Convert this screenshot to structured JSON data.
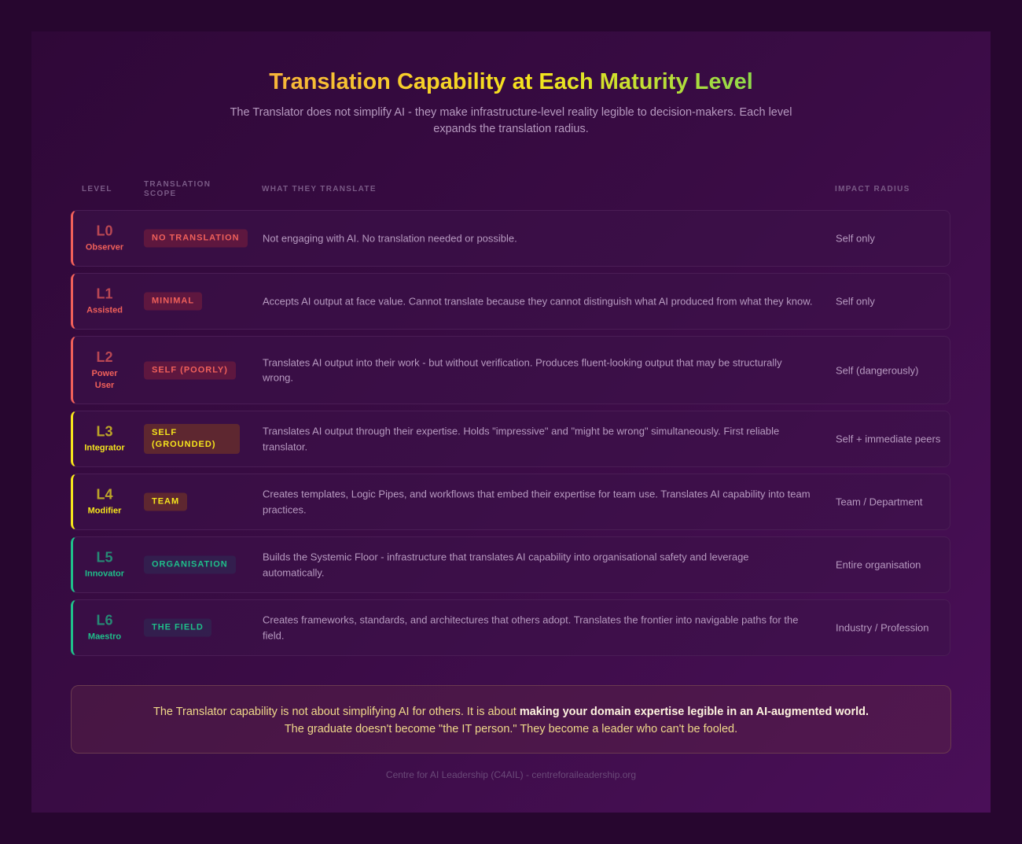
{
  "title": "Translation Capability at Each Maturity Level",
  "subtitle": "The Translator does not simplify AI - they make infrastructure-level reality legible to decision-makers. Each level expands the translation radius.",
  "headers": {
    "level": "LEVEL",
    "scope_line1": "TRANSLATION",
    "scope_line2": "SCOPE",
    "what": "WHAT THEY TRANSLATE",
    "impact": "IMPACT RADIUS"
  },
  "rows": [
    {
      "code": "L0",
      "name": "Observer",
      "scope": "NO TRANSLATION",
      "desc": "Not engaging with AI. No translation needed or possible.",
      "impact": "Self only",
      "color": "#f0605a"
    },
    {
      "code": "L1",
      "name": "Assisted",
      "scope": "MINIMAL",
      "desc": "Accepts AI output at face value. Cannot translate because they cannot distinguish what AI produced from what they know.",
      "impact": "Self only",
      "color": "#f0605a"
    },
    {
      "code": "L2",
      "name": "Power User",
      "scope": "SELF (POORLY)",
      "desc": "Translates AI output into their work - but without verification. Produces fluent-looking output that may be structurally wrong.",
      "impact": "Self (dangerously)",
      "color": "#f0605a"
    },
    {
      "code": "L3",
      "name": "Integrator",
      "scope": "SELF (GROUNDED)",
      "desc": "Translates AI output through their expertise. Holds \"impressive\" and \"might be wrong\" simultaneously. First reliable translator.",
      "impact": "Self + immediate peers",
      "color": "#f5e51c"
    },
    {
      "code": "L4",
      "name": "Modifier",
      "scope": "TEAM",
      "desc": "Creates templates, Logic Pipes, and workflows that embed their expertise for team use. Translates AI capability into team practices.",
      "impact": "Team / Department",
      "color": "#f5e51c"
    },
    {
      "code": "L5",
      "name": "Innovator",
      "scope": "ORGANISATION",
      "desc": "Builds the Systemic Floor - infrastructure that translates AI capability into organisational safety and leverage automatically.",
      "impact": "Entire organisation",
      "color": "#1fbf8a"
    },
    {
      "code": "L6",
      "name": "Maestro",
      "scope": "THE FIELD",
      "desc": "Creates frameworks, standards, and architectures that others adopt. Translates the frontier into navigable paths for the field.",
      "impact": "Industry / Profession",
      "color": "#1fbf8a"
    }
  ],
  "note": {
    "text1": "The Translator capability is not about simplifying AI for others. It is about ",
    "bold": "making your domain expertise legible in an AI-augmented world.",
    "text2": "The graduate doesn't become \"the IT person.\" They become a leader who can't be fooled."
  },
  "footer": "Centre for AI Leadership (C4AIL) - centreforaileadership.org"
}
